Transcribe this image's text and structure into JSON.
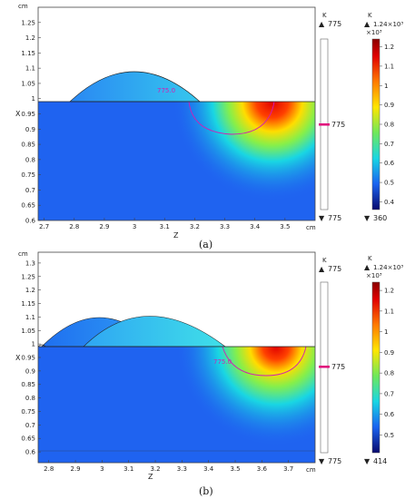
{
  "colors": {
    "blue": "#1f63f0",
    "cyan": "#19d6e3",
    "hot": "#e60000",
    "contour": "#d21fb4",
    "marker": "#e0007a"
  },
  "colorbar_ticks_a": [
    "1.2",
    "1.1",
    "1",
    "0.9",
    "0.8",
    "0.7",
    "0.6",
    "0.5",
    "0.4"
  ],
  "colorbar_ticks_b": [
    "1.2",
    "1.1",
    "1",
    "0.9",
    "0.8",
    "0.7",
    "0.6",
    "0.5"
  ],
  "chart_data": [
    {
      "type": "heatmap",
      "panel_label": "(a)",
      "xlabel": "Z",
      "ylabel": "X",
      "x_unit": "cm",
      "y_unit": "cm",
      "xlim": [
        2.68,
        3.6
      ],
      "ylim": [
        0.6,
        1.3
      ],
      "x_ticks": [
        "2.7",
        "2.8",
        "2.9",
        "3",
        "3.1",
        "3.2",
        "3.3",
        "3.4",
        "3.5"
      ],
      "y_ticks": [
        "1.25",
        "1.2",
        "1.15",
        "1.1",
        "1.05",
        "1",
        "0.95",
        "0.9",
        "0.85",
        "0.8",
        "0.75",
        "0.7",
        "0.65",
        "0.6"
      ],
      "contour_label": "775.0",
      "melt_pool_center_z": 3.33,
      "deposited_track_peak": [
        3.0,
        1.11
      ],
      "contour_legend": {
        "unit": "K",
        "max": "775",
        "marker": "775",
        "min": "775"
      },
      "colorbar": {
        "unit": "K",
        "max_label": "1.24×10³",
        "scale": "×10³",
        "min_label": "360",
        "min": 0.36,
        "max": 1.24
      }
    },
    {
      "type": "heatmap",
      "panel_label": "(b)",
      "xlabel": "Z",
      "ylabel": "X",
      "x_unit": "cm",
      "y_unit": "cm",
      "xlim": [
        2.76,
        3.8
      ],
      "ylim": [
        0.56,
        1.34
      ],
      "x_ticks": [
        "2.8",
        "2.9",
        "3",
        "3.1",
        "3.2",
        "3.3",
        "3.4",
        "3.5",
        "3.6",
        "3.7"
      ],
      "y_ticks": [
        "1.3",
        "1.25",
        "1.2",
        "1.15",
        "1.1",
        "1.05",
        "1",
        "0.95",
        "0.9",
        "0.85",
        "0.8",
        "0.75",
        "0.7",
        "0.65",
        "0.6"
      ],
      "contour_label": "775.0",
      "melt_pool_center_z": 3.61,
      "deposited_track_peaks": [
        [
          3.0,
          1.11
        ],
        [
          3.2,
          1.12
        ]
      ],
      "contour_legend": {
        "unit": "K",
        "max": "775",
        "marker": "775",
        "min": "775"
      },
      "colorbar": {
        "unit": "K",
        "max_label": "1.24×10³",
        "scale": "×10³",
        "min_label": "414",
        "min": 0.414,
        "max": 1.24
      }
    }
  ]
}
